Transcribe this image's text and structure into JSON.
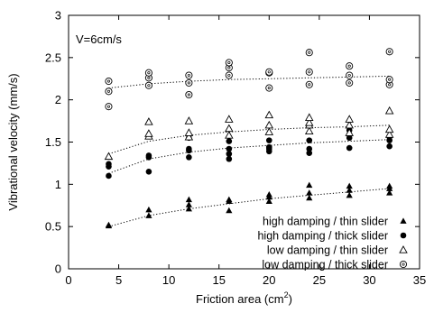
{
  "chart_data": {
    "type": "scatter",
    "xlabel": "Friction area (cm",
    "xlabel_sup": "2",
    "xlabel_close": ")",
    "ylabel": "Vibrational velocity (mm/s)",
    "annotation": "V=6cm/s",
    "xlim": [
      0,
      35
    ],
    "ylim": [
      0,
      3
    ],
    "xticks": [
      "0",
      "5",
      "10",
      "15",
      "20",
      "25",
      "30",
      "35"
    ],
    "yticks": [
      "0",
      "0.5",
      "1",
      "1.5",
      "2",
      "2.5",
      "3"
    ],
    "grid": false,
    "legend_position": "bottom-right",
    "series": [
      {
        "name": "high damping / thin  slider",
        "marker": "filled-triangle",
        "points": [
          [
            4,
            0.51
          ],
          [
            4,
            0.52
          ],
          [
            8,
            0.63
          ],
          [
            8,
            0.7
          ],
          [
            12,
            0.71
          ],
          [
            12,
            0.76
          ],
          [
            12,
            0.82
          ],
          [
            16,
            0.69
          ],
          [
            16,
            0.8
          ],
          [
            16,
            0.82
          ],
          [
            20,
            0.8
          ],
          [
            20,
            0.85
          ],
          [
            20,
            0.88
          ],
          [
            24,
            0.84
          ],
          [
            24,
            0.9
          ],
          [
            24,
            0.99
          ],
          [
            28,
            0.87
          ],
          [
            28,
            0.93
          ],
          [
            28,
            0.98
          ],
          [
            32,
            0.9
          ],
          [
            32,
            0.95
          ],
          [
            32,
            0.98
          ]
        ],
        "fit": [
          [
            4,
            0.5
          ],
          [
            8,
            0.63
          ],
          [
            12,
            0.71
          ],
          [
            16,
            0.77
          ],
          [
            20,
            0.83
          ],
          [
            24,
            0.87
          ],
          [
            28,
            0.91
          ],
          [
            32,
            0.95
          ]
        ]
      },
      {
        "name": "high damping / thick slider",
        "marker": "filled-circle",
        "points": [
          [
            4,
            1.1
          ],
          [
            4,
            1.21
          ],
          [
            4,
            1.24
          ],
          [
            8,
            1.15
          ],
          [
            8,
            1.32
          ],
          [
            8,
            1.34
          ],
          [
            12,
            1.32
          ],
          [
            12,
            1.4
          ],
          [
            12,
            1.42
          ],
          [
            12,
            1.55
          ],
          [
            16,
            1.3
          ],
          [
            16,
            1.36
          ],
          [
            16,
            1.42
          ],
          [
            16,
            1.51
          ],
          [
            20,
            1.39
          ],
          [
            20,
            1.42
          ],
          [
            20,
            1.44
          ],
          [
            20,
            1.52
          ],
          [
            24,
            1.37
          ],
          [
            24,
            1.42
          ],
          [
            24,
            1.52
          ],
          [
            28,
            1.43
          ],
          [
            28,
            1.55
          ],
          [
            28,
            1.64
          ],
          [
            32,
            1.45
          ],
          [
            32,
            1.52
          ],
          [
            32,
            1.56
          ]
        ],
        "fit": [
          [
            4,
            1.13
          ],
          [
            8,
            1.3
          ],
          [
            12,
            1.38
          ],
          [
            16,
            1.43
          ],
          [
            20,
            1.46
          ],
          [
            24,
            1.49
          ],
          [
            28,
            1.51
          ],
          [
            32,
            1.53
          ]
        ]
      },
      {
        "name": "low damping / thin  slider",
        "marker": "open-triangle",
        "points": [
          [
            4,
            1.33
          ],
          [
            8,
            1.57
          ],
          [
            8,
            1.6
          ],
          [
            8,
            1.74
          ],
          [
            12,
            1.56
          ],
          [
            12,
            1.61
          ],
          [
            12,
            1.75
          ],
          [
            16,
            1.58
          ],
          [
            16,
            1.66
          ],
          [
            16,
            1.77
          ],
          [
            20,
            1.62
          ],
          [
            20,
            1.7
          ],
          [
            20,
            1.82
          ],
          [
            24,
            1.63
          ],
          [
            24,
            1.7
          ],
          [
            24,
            1.73
          ],
          [
            24,
            1.79
          ],
          [
            28,
            1.61
          ],
          [
            28,
            1.7
          ],
          [
            28,
            1.77
          ],
          [
            32,
            1.59
          ],
          [
            32,
            1.65
          ],
          [
            32,
            1.87
          ]
        ],
        "fit": [
          [
            4,
            1.36
          ],
          [
            8,
            1.51
          ],
          [
            12,
            1.58
          ],
          [
            16,
            1.62
          ],
          [
            20,
            1.65
          ],
          [
            24,
            1.67
          ],
          [
            28,
            1.68
          ],
          [
            32,
            1.7
          ]
        ]
      },
      {
        "name": "low damping / thick slider",
        "marker": "open-circle",
        "points": [
          [
            4,
            1.92
          ],
          [
            4,
            2.1
          ],
          [
            4,
            2.22
          ],
          [
            8,
            2.17
          ],
          [
            8,
            2.26
          ],
          [
            8,
            2.32
          ],
          [
            12,
            2.06
          ],
          [
            12,
            2.2
          ],
          [
            12,
            2.29
          ],
          [
            16,
            2.29
          ],
          [
            16,
            2.38
          ],
          [
            16,
            2.44
          ],
          [
            20,
            2.14
          ],
          [
            20,
            2.32
          ],
          [
            20,
            2.33
          ],
          [
            24,
            2.18
          ],
          [
            24,
            2.33
          ],
          [
            24,
            2.56
          ],
          [
            28,
            2.2
          ],
          [
            28,
            2.29
          ],
          [
            28,
            2.4
          ],
          [
            32,
            2.18
          ],
          [
            32,
            2.24
          ],
          [
            32,
            2.57
          ]
        ],
        "fit": [
          [
            4,
            2.14
          ],
          [
            8,
            2.19
          ],
          [
            12,
            2.22
          ],
          [
            16,
            2.24
          ],
          [
            20,
            2.25
          ],
          [
            24,
            2.26
          ],
          [
            28,
            2.27
          ],
          [
            32,
            2.28
          ]
        ]
      }
    ]
  }
}
